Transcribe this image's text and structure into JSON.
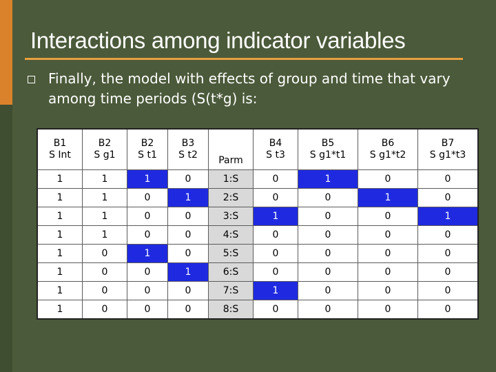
{
  "slide": {
    "title": "Interactions among indicator variables",
    "bullet_text": "Finally, the model with effects of group and time that vary among time periods (S(t*g) is:"
  },
  "colors": {
    "background": "#4b5a3a",
    "accent": "#d9822b",
    "rule": "#e8a040",
    "highlight": "#1f2ae0"
  },
  "table": {
    "headers": [
      [
        "B1",
        "S Int"
      ],
      [
        "B2",
        "S g1"
      ],
      [
        "B2",
        "S t1"
      ],
      [
        "B3",
        "S t2"
      ],
      [
        "",
        "Parm"
      ],
      [
        "B4",
        "S t3"
      ],
      [
        "B5",
        "S g1*t1"
      ],
      [
        "B6",
        "S g1*t2"
      ],
      [
        "B7",
        "S g1*t3"
      ]
    ],
    "rows": [
      [
        "1",
        "1",
        "1",
        "0",
        "1:S",
        "0",
        "1",
        "0",
        "0"
      ],
      [
        "1",
        "1",
        "0",
        "1",
        "2:S",
        "0",
        "0",
        "1",
        "0"
      ],
      [
        "1",
        "1",
        "0",
        "0",
        "3:S",
        "1",
        "0",
        "0",
        "1"
      ],
      [
        "1",
        "1",
        "0",
        "0",
        "4:S",
        "0",
        "0",
        "0",
        "0"
      ],
      [
        "1",
        "0",
        "1",
        "0",
        "5:S",
        "0",
        "0",
        "0",
        "0"
      ],
      [
        "1",
        "0",
        "0",
        "1",
        "6:S",
        "0",
        "0",
        "0",
        "0"
      ],
      [
        "1",
        "0",
        "0",
        "0",
        "7:S",
        "1",
        "0",
        "0",
        "0"
      ],
      [
        "1",
        "0",
        "0",
        "0",
        "8:S",
        "0",
        "0",
        "0",
        "0"
      ]
    ],
    "highlighted": [
      [
        0,
        2
      ],
      [
        0,
        6
      ],
      [
        1,
        3
      ],
      [
        1,
        7
      ],
      [
        2,
        5
      ],
      [
        2,
        8
      ],
      [
        4,
        2
      ],
      [
        5,
        3
      ],
      [
        6,
        5
      ]
    ]
  }
}
